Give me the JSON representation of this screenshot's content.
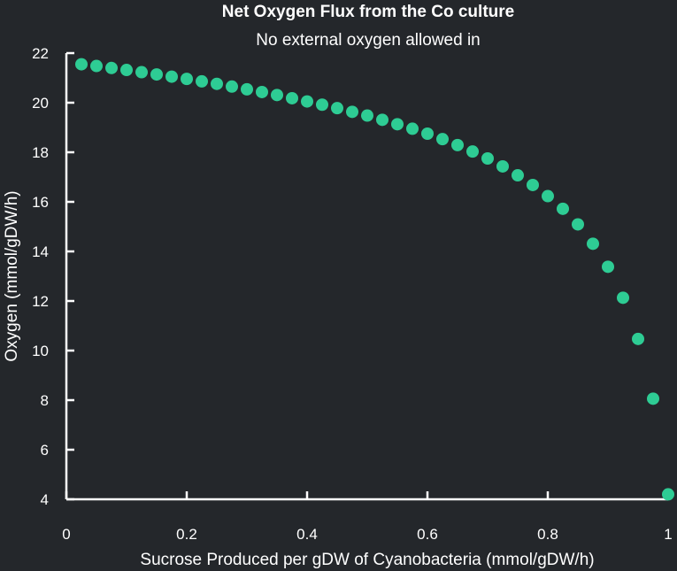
{
  "chart_data": {
    "type": "scatter",
    "title": "Net Oxygen Flux from the Co culture",
    "subtitle": "No external oxygen allowed in",
    "xlabel": "Sucrose Produced per gDW of Cyanobacteria (mmol/gDW/h)",
    "ylabel": "Oxygen (mmol/gDW/h)",
    "xlim": [
      0,
      1
    ],
    "ylim": [
      4,
      22
    ],
    "xticks": [
      0,
      0.2,
      0.4,
      0.6,
      0.8,
      1
    ],
    "xtick_labels": [
      "0",
      "0.2",
      "0.4",
      "0.6",
      "0.8",
      "1"
    ],
    "yticks": [
      4,
      6,
      8,
      10,
      12,
      14,
      16,
      18,
      20,
      22
    ],
    "ytick_labels": [
      "4",
      "6",
      "8",
      "10",
      "12",
      "14",
      "16",
      "18",
      "20",
      "22"
    ],
    "grid": false,
    "marker_color": "#2ecc94",
    "background_color": "#24272b",
    "series": [
      {
        "x": [
          0.025,
          0.05,
          0.075,
          0.1,
          0.125,
          0.15,
          0.175,
          0.2,
          0.225,
          0.25,
          0.275,
          0.3,
          0.325,
          0.35,
          0.375,
          0.4,
          0.425,
          0.45,
          0.475,
          0.5,
          0.525,
          0.55,
          0.575,
          0.6,
          0.625,
          0.65,
          0.675,
          0.7,
          0.725,
          0.75,
          0.775,
          0.8,
          0.825,
          0.85,
          0.875,
          0.9,
          0.925,
          0.95,
          0.975,
          1.0
        ],
        "y": [
          21.55,
          21.48,
          21.4,
          21.32,
          21.23,
          21.14,
          21.05,
          20.96,
          20.86,
          20.76,
          20.65,
          20.54,
          20.43,
          20.31,
          20.18,
          20.05,
          19.92,
          19.78,
          19.63,
          19.48,
          19.31,
          19.13,
          18.95,
          18.75,
          18.53,
          18.29,
          18.03,
          17.75,
          17.43,
          17.07,
          16.68,
          16.23,
          15.72,
          15.09,
          14.31,
          13.38,
          12.13,
          10.47,
          8.06,
          4.2
        ]
      }
    ]
  }
}
